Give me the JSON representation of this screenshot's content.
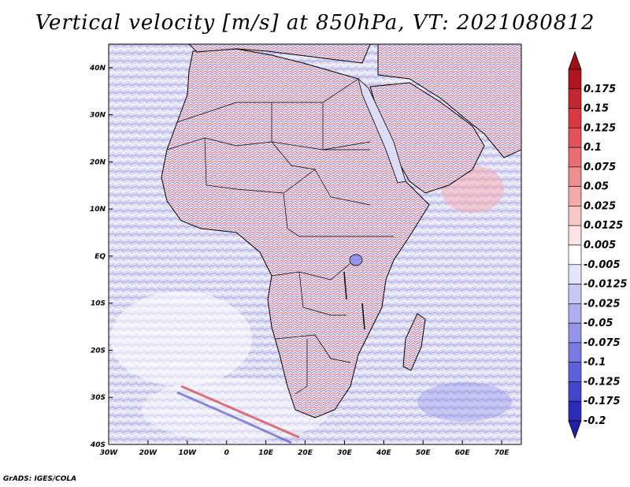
{
  "title": "Vertical velocity [m/s] at 850hPa, VT: 2021080812",
  "credit": "GrADS: IGES/COLA",
  "map": {
    "x_ticks": [
      "30W",
      "20W",
      "10W",
      "0",
      "10E",
      "20E",
      "30E",
      "40E",
      "50E",
      "60E",
      "70E"
    ],
    "y_ticks": [
      "40N",
      "30N",
      "20N",
      "10N",
      "EQ",
      "10S",
      "20S",
      "30S",
      "40S"
    ],
    "lon_range": [
      -30,
      75
    ],
    "lat_range": [
      -40,
      45
    ],
    "field": "vertical velocity at 850hPa"
  },
  "colorbar": {
    "levels": [
      {
        "label": "0.175",
        "color": "#b0141e"
      },
      {
        "label": "0.15",
        "color": "#c4262e"
      },
      {
        "label": "0.125",
        "color": "#d63a40"
      },
      {
        "label": "0.1",
        "color": "#e25458"
      },
      {
        "label": "0.075",
        "color": "#ea6f72"
      },
      {
        "label": "0.05",
        "color": "#f08d8e"
      },
      {
        "label": "0.025",
        "color": "#f5aaaa"
      },
      {
        "label": "0.0125",
        "color": "#f9c6c6"
      },
      {
        "label": "0.005",
        "color": "#fce2e2"
      },
      {
        "label": "-0.005",
        "color": "#ffffff"
      },
      {
        "label": "-0.0125",
        "color": "#e4e4fb"
      },
      {
        "label": "-0.025",
        "color": "#c8c8f5"
      },
      {
        "label": "-0.05",
        "color": "#aeaef0"
      },
      {
        "label": "-0.075",
        "color": "#9494ea"
      },
      {
        "label": "-0.1",
        "color": "#7a7ae3"
      },
      {
        "label": "-0.125",
        "color": "#5f5fd9"
      },
      {
        "label": "-0.175",
        "color": "#4444cc"
      },
      {
        "label": "-0.2",
        "color": "#2b2bb8"
      }
    ],
    "top_color": "#a01018",
    "bottom_color": "#2020a8"
  }
}
